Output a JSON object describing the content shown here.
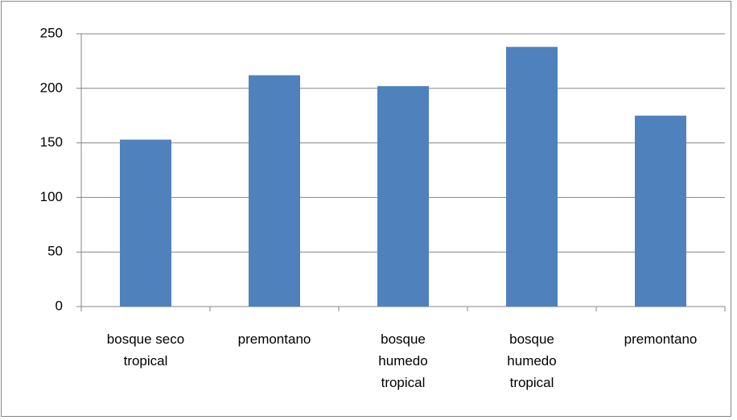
{
  "chart_data": {
    "type": "bar",
    "categories": [
      "bosque seco tropical",
      "premontano",
      "bosque humedo tropical",
      "bosque humedo tropical",
      "premontano"
    ],
    "values": [
      153,
      212,
      202,
      238,
      175
    ],
    "color": "#4f81bd",
    "ylim": [
      0,
      250
    ],
    "yticks": [
      0,
      50,
      100,
      150,
      200,
      250
    ],
    "grid": true
  }
}
